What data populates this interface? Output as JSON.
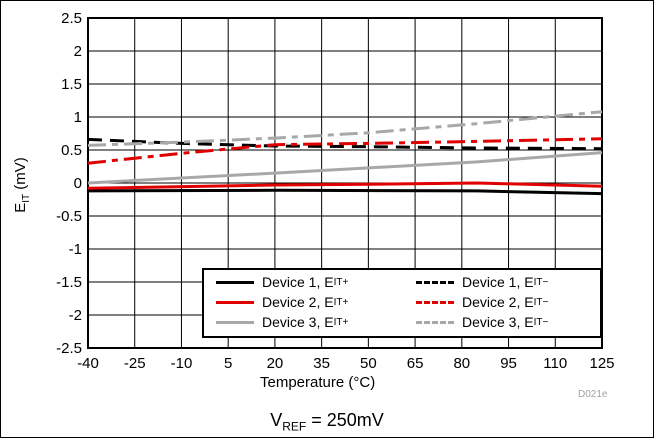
{
  "chart_data": {
    "type": "line",
    "xlabel": "Temperature (°C)",
    "ylabel": "E",
    "ylabel_sub": "IT",
    "ylabel_unit": " (mV)",
    "caption_main": "V",
    "caption_sub": "REF",
    "caption_rest": " = 250mV",
    "figure_id": "D021e",
    "xlim": [
      -40,
      125
    ],
    "ylim": [
      -2.5,
      2.5
    ],
    "xticks": [
      -40,
      -25,
      -10,
      5,
      20,
      35,
      50,
      65,
      80,
      95,
      110,
      125
    ],
    "yticks": [
      -2.5,
      -2,
      -1.5,
      -1,
      -0.5,
      0,
      0.5,
      1,
      1.5,
      2,
      2.5
    ],
    "ytick_labels": [
      "-2.5",
      "-2",
      "-1.5",
      "-1",
      "-0.5",
      "0",
      "0.5",
      "1",
      "1.5",
      "2",
      "2.5"
    ],
    "grid": true,
    "legend_position": "bottom-right",
    "series": [
      {
        "label_main": "Device 1, E",
        "label_sub": "IT+",
        "color": "#000000",
        "dash": "solid",
        "x": [
          -40,
          20,
          85,
          125
        ],
        "y": [
          -0.12,
          -0.11,
          -0.12,
          -0.16
        ]
      },
      {
        "label_main": "Device 1, E",
        "label_sub": "IT−",
        "color": "#000000",
        "dash": "dashed",
        "x": [
          -40,
          -10,
          20,
          50,
          85,
          125
        ],
        "y": [
          0.66,
          0.6,
          0.56,
          0.55,
          0.53,
          0.52
        ]
      },
      {
        "label_main": "Device 2, E",
        "label_sub": "IT+",
        "color": "#e00000",
        "dash": "solid",
        "x": [
          -40,
          20,
          50,
          85,
          125
        ],
        "y": [
          -0.08,
          -0.03,
          -0.02,
          0.0,
          -0.05
        ]
      },
      {
        "label_main": "Device 2, E",
        "label_sub": "IT−",
        "color": "#e00000",
        "dash": "dashdot",
        "x": [
          -40,
          -10,
          20,
          50,
          85,
          125
        ],
        "y": [
          0.3,
          0.45,
          0.58,
          0.6,
          0.63,
          0.67
        ]
      },
      {
        "label_main": "Device 3, E",
        "label_sub": "IT+",
        "color": "#a8a8a8",
        "dash": "solid",
        "x": [
          -40,
          20,
          85,
          125
        ],
        "y": [
          0.0,
          0.15,
          0.32,
          0.46
        ]
      },
      {
        "label_main": "Device 3, E",
        "label_sub": "IT−",
        "color": "#a8a8a8",
        "dash": "dashdot",
        "x": [
          -40,
          -10,
          20,
          50,
          85,
          125
        ],
        "y": [
          0.57,
          0.62,
          0.68,
          0.76,
          0.9,
          1.08
        ]
      }
    ]
  }
}
